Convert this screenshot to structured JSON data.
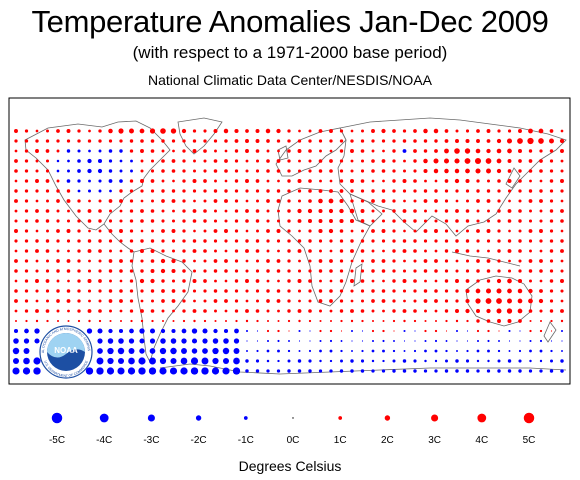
{
  "title": "Temperature Anomalies Jan-Dec 2009",
  "subtitle": "(with respect to a 1971-2000 base period)",
  "credit": "National Climatic Data Center/NESDIS/NOAA",
  "logo": {
    "name": "NOAA",
    "ring_text_top": "NATIONAL OCEANIC AND ATMOSPHERIC ADMINISTRATION",
    "ring_text_bottom": "U.S. DEPARTMENT OF COMMERCE"
  },
  "legend": {
    "items": [
      {
        "label": "-5C",
        "value": -5
      },
      {
        "label": "-4C",
        "value": -4
      },
      {
        "label": "-3C",
        "value": -3
      },
      {
        "label": "-2C",
        "value": -2
      },
      {
        "label": "-1C",
        "value": -1
      },
      {
        "label": "0C",
        "value": 0
      },
      {
        "label": "1C",
        "value": 1
      },
      {
        "label": "2C",
        "value": 2
      },
      {
        "label": "3C",
        "value": 3
      },
      {
        "label": "4C",
        "value": 4
      },
      {
        "label": "5C",
        "value": 5
      }
    ],
    "units": "Degrees Celsius"
  },
  "colors": {
    "warm": "#ff0000",
    "cold": "#0000ff",
    "coastline": "#606060",
    "frame": "#000000",
    "noaa_blue": "#1d4fa3",
    "noaa_sky": "#9fd3f2"
  }
}
